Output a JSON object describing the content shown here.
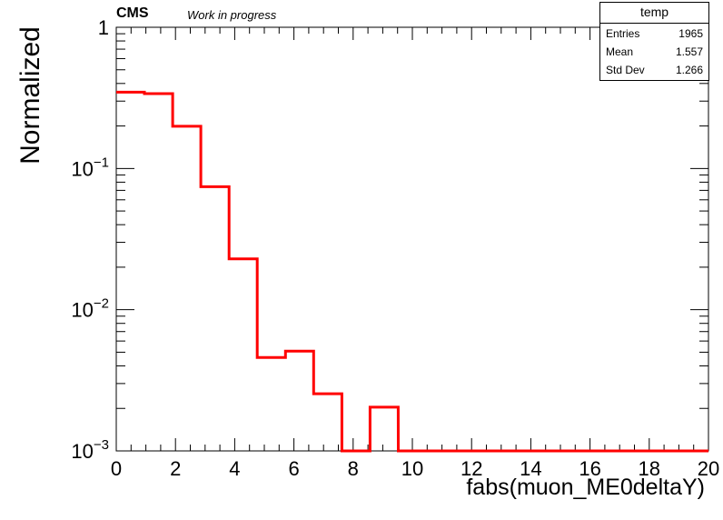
{
  "header": {
    "experiment": "CMS",
    "status": "Work in progress"
  },
  "stats": {
    "title": "temp",
    "rows": [
      {
        "label": "Entries",
        "value": "1965"
      },
      {
        "label": "Mean",
        "value": "1.557"
      },
      {
        "label": "Std Dev",
        "value": "1.266"
      }
    ]
  },
  "chart_data": {
    "type": "line",
    "style": "step histogram",
    "xlabel": "fabs(muon_ME0deltaY)",
    "ylabel": "Normalized",
    "xlim": [
      0,
      20
    ],
    "ylim": [
      0.001,
      1
    ],
    "yscale": "log",
    "line_color": "#ff0000",
    "x_ticks": [
      "0",
      "2",
      "4",
      "6",
      "8",
      "10",
      "12",
      "14",
      "16",
      "18",
      "20"
    ],
    "y_ticks": [
      {
        "value": 1,
        "base": "1",
        "exp": ""
      },
      {
        "value": 0.1,
        "base": "10",
        "exp": "−1"
      },
      {
        "value": 0.01,
        "base": "10",
        "exp": "−2"
      },
      {
        "value": 0.001,
        "base": "10",
        "exp": "−3"
      }
    ],
    "bin_width": 0.952,
    "bins_low": [
      0,
      0.952,
      1.905,
      2.857,
      3.81,
      4.762,
      5.714,
      6.667,
      7.619,
      8.571,
      9.524,
      10.476,
      11.429,
      12.381,
      13.333,
      14.286,
      15.238,
      16.19,
      17.143,
      18.095,
      19.048
    ],
    "values": [
      0.347,
      0.339,
      0.199,
      0.0743,
      0.0229,
      0.00458,
      0.00509,
      0.00254,
      0.001,
      0.00204,
      0.001,
      0.001,
      0.001,
      0.001,
      0.001,
      0.001,
      0.001,
      0.001,
      0.001,
      0.001,
      0.001
    ]
  }
}
